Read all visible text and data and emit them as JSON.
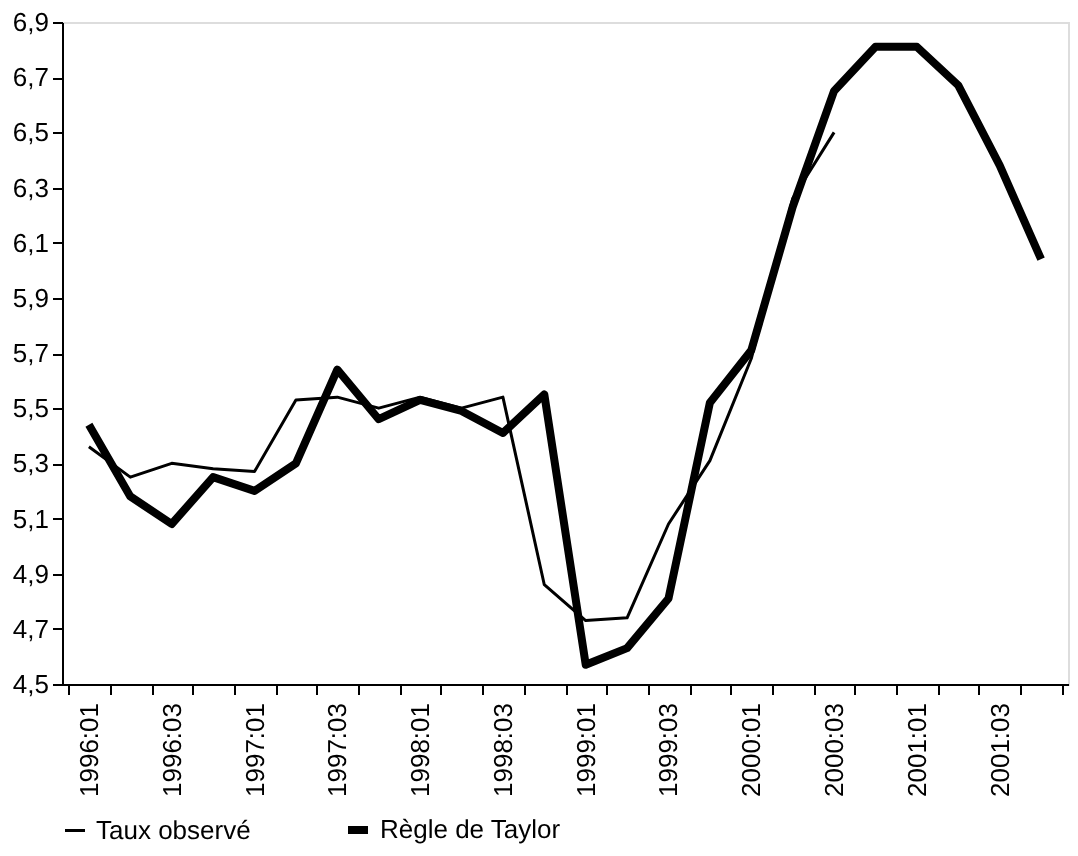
{
  "chart_data": {
    "type": "line",
    "categories": [
      "1996:01",
      null,
      "1996:03",
      null,
      "1997:01",
      null,
      "1997:03",
      null,
      "1998:01",
      null,
      "1998:03",
      null,
      "1999:01",
      null,
      "1999:03",
      null,
      "2000:01",
      null,
      "2000:03",
      null,
      "2001:01",
      null,
      "2001:03",
      null
    ],
    "series": [
      {
        "name": "Taux observé",
        "color": "#000000",
        "values": [
          5.36,
          5.25,
          5.3,
          5.28,
          5.27,
          5.53,
          5.54,
          5.5,
          5.54,
          5.5,
          5.54,
          4.86,
          4.73,
          4.74,
          5.08,
          5.31,
          5.68,
          6.26,
          6.5,
          null,
          null,
          null,
          null,
          null
        ]
      },
      {
        "name": "Règle de Taylor",
        "color": "#000000",
        "values": [
          5.44,
          5.18,
          5.08,
          5.25,
          5.2,
          5.3,
          5.64,
          5.46,
          5.53,
          5.49,
          5.41,
          5.55,
          4.57,
          4.63,
          4.81,
          5.52,
          5.71,
          6.23,
          6.65,
          6.81,
          6.81,
          6.67,
          6.38,
          6.04
        ]
      }
    ],
    "ylim": [
      4.5,
      6.9
    ],
    "yticks": [
      {
        "value": 4.5,
        "label": "4,5"
      },
      {
        "value": 4.7,
        "label": "4,7"
      },
      {
        "value": 4.9,
        "label": "4,9"
      },
      {
        "value": 5.1,
        "label": "5,1"
      },
      {
        "value": 5.3,
        "label": "5,3"
      },
      {
        "value": 5.5,
        "label": "5,5"
      },
      {
        "value": 5.7,
        "label": "5,7"
      },
      {
        "value": 5.9,
        "label": "5,9"
      },
      {
        "value": 6.1,
        "label": "6,1"
      },
      {
        "value": 6.3,
        "label": "6,3"
      },
      {
        "value": 6.5,
        "label": "6,5"
      },
      {
        "value": 6.7,
        "label": "6,7"
      },
      {
        "value": 6.9,
        "label": "6,9"
      }
    ],
    "grid": false,
    "legend": "bottom",
    "marker": "none",
    "line_style": "solid"
  }
}
